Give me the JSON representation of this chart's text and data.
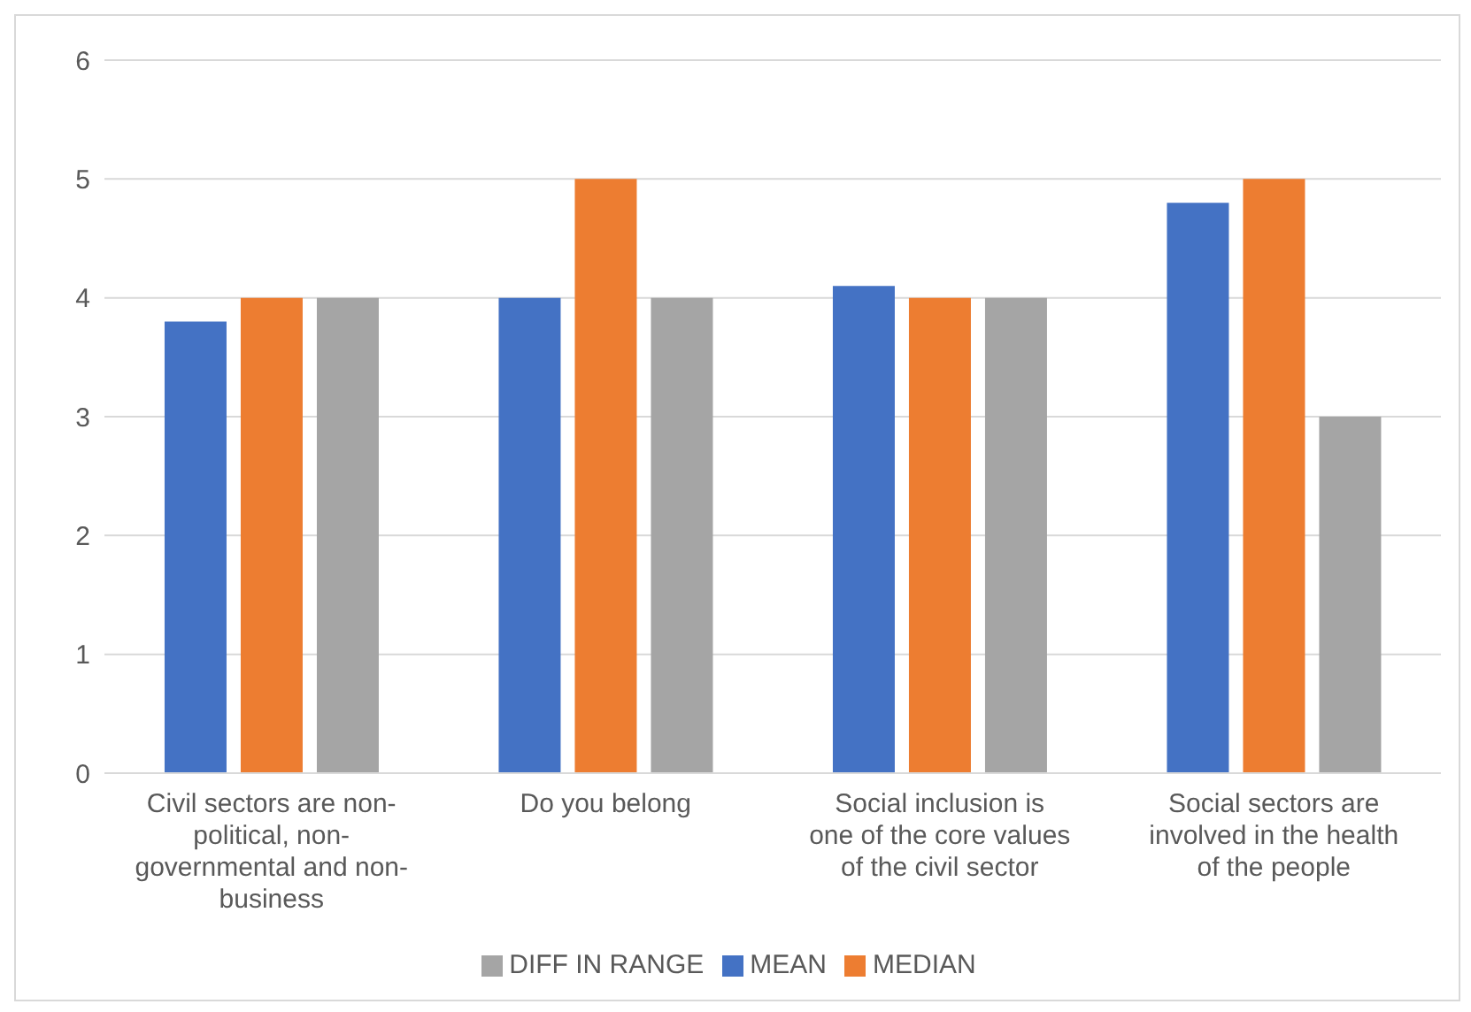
{
  "chart_data": {
    "type": "bar",
    "categories": [
      "Civil sectors are non-political, non-governmental and non-business",
      "Do you belong",
      "Social inclusion is one of the core values of the civil sector",
      "Social  sectors are involved in the health of the people"
    ],
    "series": [
      {
        "name": "MEAN",
        "color": "#4472c4",
        "values": [
          3.8,
          4,
          4.1,
          4.8
        ]
      },
      {
        "name": "MEDIAN",
        "color": "#ed7d31",
        "values": [
          4,
          5,
          4,
          5
        ]
      },
      {
        "name": "DIFF IN RANGE",
        "color": "#a5a5a5",
        "values": [
          4,
          4,
          4,
          3
        ]
      }
    ],
    "ylim": [
      0,
      6
    ],
    "yticks": [
      0,
      1,
      2,
      3,
      4,
      5,
      6
    ],
    "grid": "y",
    "legend": "bottom"
  }
}
